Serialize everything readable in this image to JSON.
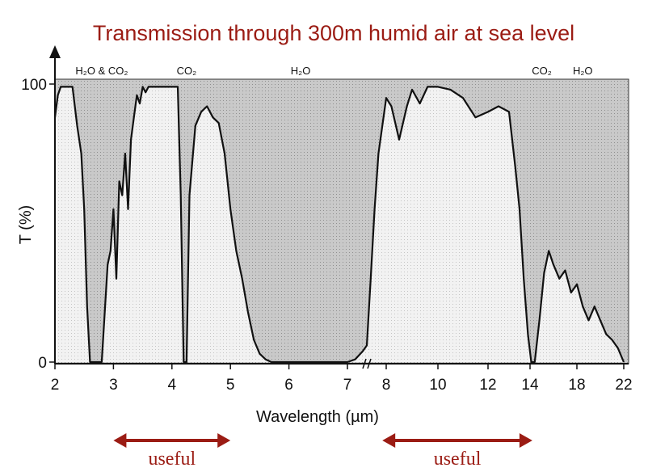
{
  "chart_data": {
    "type": "area",
    "title": "Transmission through 300m humid air at sea level",
    "xlabel": "Wavelength (µm)",
    "ylabel": "T (%)",
    "ylim": [
      0,
      100
    ],
    "yticks": [
      {
        "value": 0,
        "label": "0"
      },
      {
        "value": 100,
        "label": "100"
      }
    ],
    "xticks": [
      "2",
      "3",
      "4",
      "5",
      "6",
      "7",
      "8",
      "10",
      "12",
      "14",
      "18",
      "22"
    ],
    "x_axis_note": "axis is broken between 7 and 8 µm; scale changes after the break",
    "series": [
      {
        "x": [
          2.0,
          2.05,
          2.1,
          2.2,
          2.3,
          2.38,
          2.45,
          2.5,
          2.55,
          2.6,
          2.7,
          2.8,
          2.9,
          2.95,
          3.0,
          3.05,
          3.1,
          3.15,
          3.2,
          3.25,
          3.3,
          3.35,
          3.4,
          3.45,
          3.5,
          3.55,
          3.6,
          3.7,
          3.8,
          3.9,
          4.0,
          4.1,
          4.15,
          4.2,
          4.25,
          4.3,
          4.4,
          4.5,
          4.6,
          4.7,
          4.8,
          4.9,
          5.0,
          5.1,
          5.2,
          5.3,
          5.4,
          5.5,
          5.6,
          5.7,
          6.0,
          6.5,
          7.0,
          7.2,
          7.4,
          7.5,
          7.6,
          7.7,
          7.8,
          7.9,
          8.0,
          8.2,
          8.5,
          8.8,
          9.0,
          9.3,
          9.6,
          10.0,
          10.5,
          11.0,
          11.5,
          12.0,
          12.5,
          13.0,
          13.3,
          13.5,
          13.7,
          13.9,
          14.1,
          14.4,
          14.8,
          15.2,
          15.6,
          16.0,
          16.5,
          17.0,
          17.5,
          18.0,
          18.5,
          19.0,
          19.5,
          20.0,
          20.5,
          21.0,
          21.5,
          22.0
        ],
        "values": [
          88,
          96,
          99,
          99,
          99,
          85,
          75,
          55,
          20,
          0,
          0,
          0,
          35,
          40,
          55,
          30,
          65,
          60,
          75,
          55,
          80,
          88,
          96,
          93,
          99,
          97,
          99,
          99,
          99,
          99,
          99,
          99,
          60,
          0,
          0,
          60,
          85,
          90,
          92,
          88,
          86,
          75,
          55,
          40,
          30,
          18,
          8,
          3,
          1,
          0,
          0,
          0,
          0,
          1,
          4,
          6,
          30,
          55,
          75,
          85,
          95,
          92,
          80,
          92,
          98,
          93,
          99,
          99,
          98,
          95,
          88,
          90,
          92,
          90,
          70,
          55,
          30,
          10,
          0,
          0,
          15,
          32,
          40,
          35,
          30,
          33,
          25,
          28,
          20,
          15,
          20,
          15,
          10,
          8,
          5,
          0
        ]
      }
    ],
    "band_labels": [
      {
        "label": "H₂O & CO₂",
        "x": 2.8
      },
      {
        "label": "CO₂",
        "x": 4.25
      },
      {
        "label": "H₂O",
        "x": 6.2
      },
      {
        "label": "CO₂",
        "x": 15.0
      },
      {
        "label": "H₂O",
        "x": 18.5
      }
    ],
    "useful_ranges": [
      {
        "label": "useful",
        "from": 3.0,
        "to": 5.0
      },
      {
        "label": "useful",
        "from": 7.9,
        "to": 14.2
      }
    ]
  }
}
